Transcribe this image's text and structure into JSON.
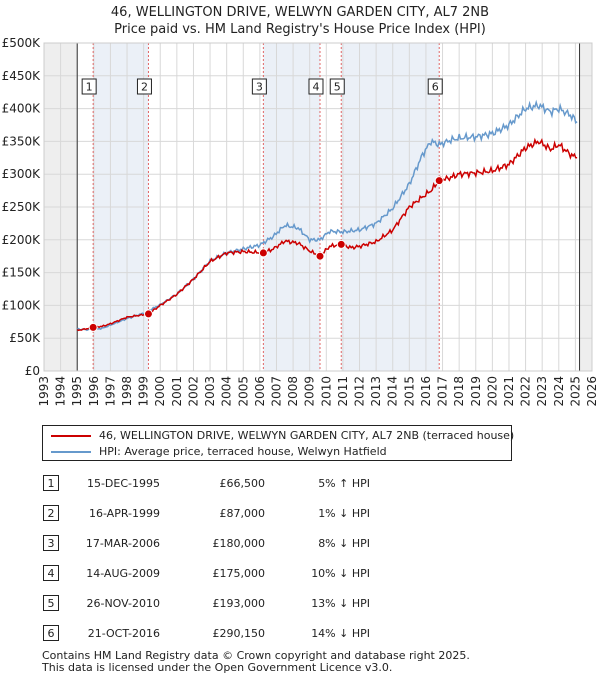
{
  "title_line1": "46, WELLINGTON DRIVE, WELWYN GARDEN CITY, AL7 2NB",
  "title_line2": "Price paid vs. HM Land Registry's House Price Index (HPI)",
  "colors": {
    "property": "#cc0000",
    "hpi": "#6699cc",
    "shade": "#dde6f2",
    "marker_line": "#e06666"
  },
  "chart_data": {
    "type": "line",
    "x_range": [
      1993,
      2026
    ],
    "ylim": [
      0,
      500000
    ],
    "y_ticks": [
      0,
      50000,
      100000,
      150000,
      200000,
      250000,
      300000,
      350000,
      400000,
      450000,
      500000
    ],
    "y_tick_labels": [
      "£0",
      "£50K",
      "£100K",
      "£150K",
      "£200K",
      "£250K",
      "£300K",
      "£350K",
      "£400K",
      "£450K",
      "£500K"
    ],
    "x_ticks": [
      1993,
      1994,
      1995,
      1996,
      1997,
      1998,
      1999,
      2000,
      2001,
      2002,
      2003,
      2004,
      2005,
      2006,
      2007,
      2008,
      2009,
      2010,
      2011,
      2012,
      2013,
      2014,
      2015,
      2016,
      2017,
      2018,
      2019,
      2020,
      2021,
      2022,
      2023,
      2024,
      2025,
      2026
    ],
    "data_start": 1995.0,
    "data_end": 2025.25,
    "series": [
      {
        "name": "46, WELLINGTON DRIVE, WELWYN GARDEN CITY, AL7 2NB (terraced house)",
        "x": [
          1995.0,
          1995.5,
          1995.96,
          1996.5,
          1997,
          1998,
          1999.29,
          2000,
          2001,
          2002,
          2003,
          2004,
          2005,
          2006.21,
          2006.8,
          2007.5,
          2008.3,
          2009.0,
          2009.62,
          2010.2,
          2010.9,
          2011.5,
          2012,
          2013,
          2014,
          2015,
          2016.3,
          2016.8,
          2017.5,
          2018,
          2019,
          2020,
          2021,
          2022,
          2022.8,
          2023.5,
          2024,
          2024.7,
          2025.1
        ],
        "values": [
          62000,
          64000,
          66500,
          68000,
          72000,
          82000,
          87000,
          100000,
          117000,
          140000,
          167000,
          180000,
          182000,
          180000,
          186000,
          198000,
          195000,
          183000,
          175000,
          190000,
          193000,
          188000,
          190000,
          197000,
          215000,
          250000,
          275000,
          290150,
          295000,
          300000,
          302000,
          305000,
          315000,
          340000,
          350000,
          338000,
          345000,
          330000,
          325000
        ]
      },
      {
        "name": "HPI: Average price, terraced house, Welwyn Hatfield",
        "x": [
          1995.0,
          1995.5,
          1996,
          1996.5,
          1997,
          1998,
          1999,
          2000,
          2001,
          2002,
          2003,
          2004,
          2005,
          2006,
          2006.8,
          2007.5,
          2008.3,
          2009.0,
          2009.6,
          2010.2,
          2011,
          2012,
          2013,
          2014,
          2015,
          2015.8,
          2016.3,
          2016.8,
          2017.5,
          2018,
          2019,
          2020,
          2021,
          2022,
          2022.8,
          2023.5,
          2024,
          2024.7,
          2025.1
        ],
        "values": [
          64000,
          63000,
          63500,
          65000,
          70000,
          80000,
          88000,
          101000,
          117000,
          140000,
          168000,
          180000,
          186000,
          192000,
          205000,
          222000,
          218000,
          200000,
          200000,
          213000,
          212000,
          215000,
          225000,
          248000,
          285000,
          330000,
          350000,
          345000,
          352000,
          355000,
          357000,
          362000,
          375000,
          400000,
          405000,
          395000,
          400000,
          390000,
          380000
        ]
      }
    ],
    "sales": [
      {
        "label": "1",
        "x": 1995.96,
        "value": 66500
      },
      {
        "label": "2",
        "x": 1999.29,
        "value": 87000
      },
      {
        "label": "3",
        "x": 2006.21,
        "value": 180000
      },
      {
        "label": "4",
        "x": 2009.62,
        "value": 175000
      },
      {
        "label": "5",
        "x": 2010.9,
        "value": 193000
      },
      {
        "label": "6",
        "x": 2016.8,
        "value": 290150
      }
    ]
  },
  "legend": {
    "property": "46, WELLINGTON DRIVE, WELWYN GARDEN CITY, AL7 2NB (terraced house)",
    "hpi": "HPI: Average price, terraced house, Welwyn Hatfield"
  },
  "sales_table": [
    {
      "num": "1",
      "date": "15-DEC-1995",
      "price": "£66,500",
      "hpi": "5% ↑ HPI"
    },
    {
      "num": "2",
      "date": "16-APR-1999",
      "price": "£87,000",
      "hpi": "1% ↓ HPI"
    },
    {
      "num": "3",
      "date": "17-MAR-2006",
      "price": "£180,000",
      "hpi": "8% ↓ HPI"
    },
    {
      "num": "4",
      "date": "14-AUG-2009",
      "price": "£175,000",
      "hpi": "10% ↓ HPI"
    },
    {
      "num": "5",
      "date": "26-NOV-2010",
      "price": "£193,000",
      "hpi": "13% ↓ HPI"
    },
    {
      "num": "6",
      "date": "21-OCT-2016",
      "price": "£290,150",
      "hpi": "14% ↓ HPI"
    }
  ],
  "footer_line1": "Contains HM Land Registry data © Crown copyright and database right 2025.",
  "footer_line2": "This data is licensed under the Open Government Licence v3.0."
}
